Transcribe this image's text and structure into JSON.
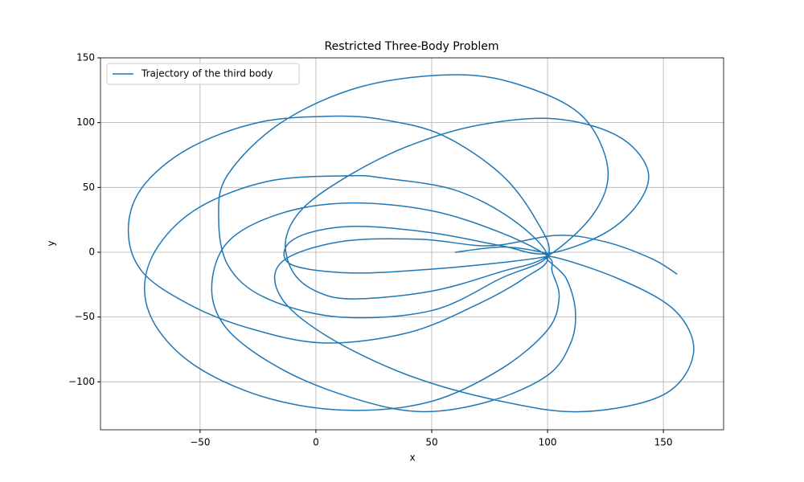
{
  "chart_data": {
    "type": "line",
    "title": "Restricted Three-Body Problem",
    "x_label": "x",
    "y_label": "y",
    "xlim": [
      -93,
      176
    ],
    "ylim": [
      -137,
      150
    ],
    "xticks": [
      {
        "value": -50,
        "label": "−50"
      },
      0,
      50,
      100,
      150
    ],
    "yticks": [
      {
        "value": -100,
        "label": "−100"
      },
      {
        "value": -50,
        "label": "−50"
      },
      0,
      50,
      100,
      150
    ],
    "grid": true,
    "legend": "upper left",
    "series": [
      {
        "name": "Trajectory of the third body",
        "color": "#1f77b4",
        "x": [
          60,
          80,
          95,
          100,
          80,
          50,
          15,
          -10,
          -13,
          -3,
          18,
          50,
          80,
          100,
          125,
          140,
          143,
          130,
          103,
          70,
          40,
          15,
          -5,
          -13,
          -10,
          0,
          16,
          50,
          80,
          100,
          120,
          126,
          115,
          90,
          61,
          20,
          -15,
          -38,
          -42,
          -38,
          -22,
          10,
          50,
          80,
          100,
          95,
          80,
          55,
          30,
          7,
          -25,
          -55,
          -75,
          -81,
          -75,
          -55,
          -30,
          3,
          40,
          70,
          90,
          100,
          85,
          60,
          30,
          15,
          -20,
          -50,
          -68,
          -74,
          -68,
          -50,
          -20,
          15,
          50,
          80,
          100,
          105,
          102,
          100,
          80,
          50,
          15,
          -15,
          -38,
          -45,
          -38,
          -15,
          15,
          45,
          75,
          100,
          110,
          112,
          108,
          100,
          130,
          155,
          163,
          150,
          115,
          80,
          40,
          5,
          -15,
          -15,
          10,
          45,
          75,
          104,
          125,
          145,
          156
        ],
        "values": [
          0,
          4,
          1,
          -3,
          -8,
          -13,
          -16,
          -10,
          4,
          15,
          20,
          15,
          5,
          -1,
          15,
          40,
          65,
          90,
          103,
          98,
          82,
          60,
          35,
          10,
          -15,
          -30,
          -36,
          -30,
          -15,
          -3,
          30,
          65,
          105,
          128,
          137,
          128,
          100,
          60,
          27,
          -10,
          -35,
          -50,
          -45,
          -20,
          -3,
          25,
          60,
          90,
          102,
          105,
          100,
          80,
          50,
          17,
          -15,
          -40,
          -58,
          -70,
          -62,
          -40,
          -20,
          -3,
          25,
          48,
          57,
          59,
          55,
          35,
          5,
          -28,
          -60,
          -90,
          -113,
          -122,
          -115,
          -90,
          -60,
          -35,
          -15,
          -3,
          15,
          32,
          38,
          30,
          8,
          -28,
          -60,
          -90,
          -112,
          -123,
          -115,
          -95,
          -70,
          -45,
          -20,
          -3,
          -20,
          -45,
          -78,
          -110,
          -123,
          -115,
          -95,
          -65,
          -35,
          -8,
          8,
          10,
          5,
          13,
          8,
          -5,
          -17
        ]
      }
    ]
  }
}
